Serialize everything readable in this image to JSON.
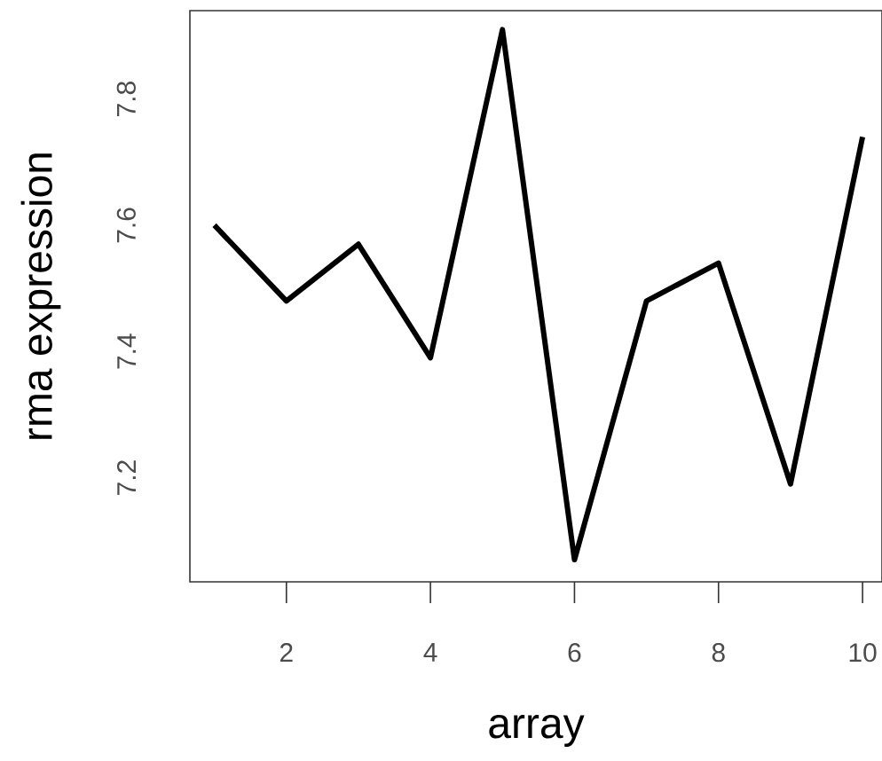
{
  "chart_data": {
    "type": "line",
    "xlabel": "array",
    "ylabel": "rma expression",
    "x": [
      1,
      2,
      3,
      4,
      5,
      6,
      7,
      8,
      9,
      10
    ],
    "series": [
      {
        "color": "#000000",
        "values": [
          7.6,
          7.48,
          7.57,
          7.39,
          7.91,
          7.07,
          7.48,
          7.54,
          7.19,
          7.74
        ]
      }
    ],
    "xlim": [
      0.66,
      10.27
    ],
    "ylim": [
      7.035,
      7.94
    ],
    "xticks": [
      2,
      4,
      6,
      8,
      10
    ],
    "yticks": [
      7.2,
      7.4,
      7.6,
      7.8
    ]
  }
}
